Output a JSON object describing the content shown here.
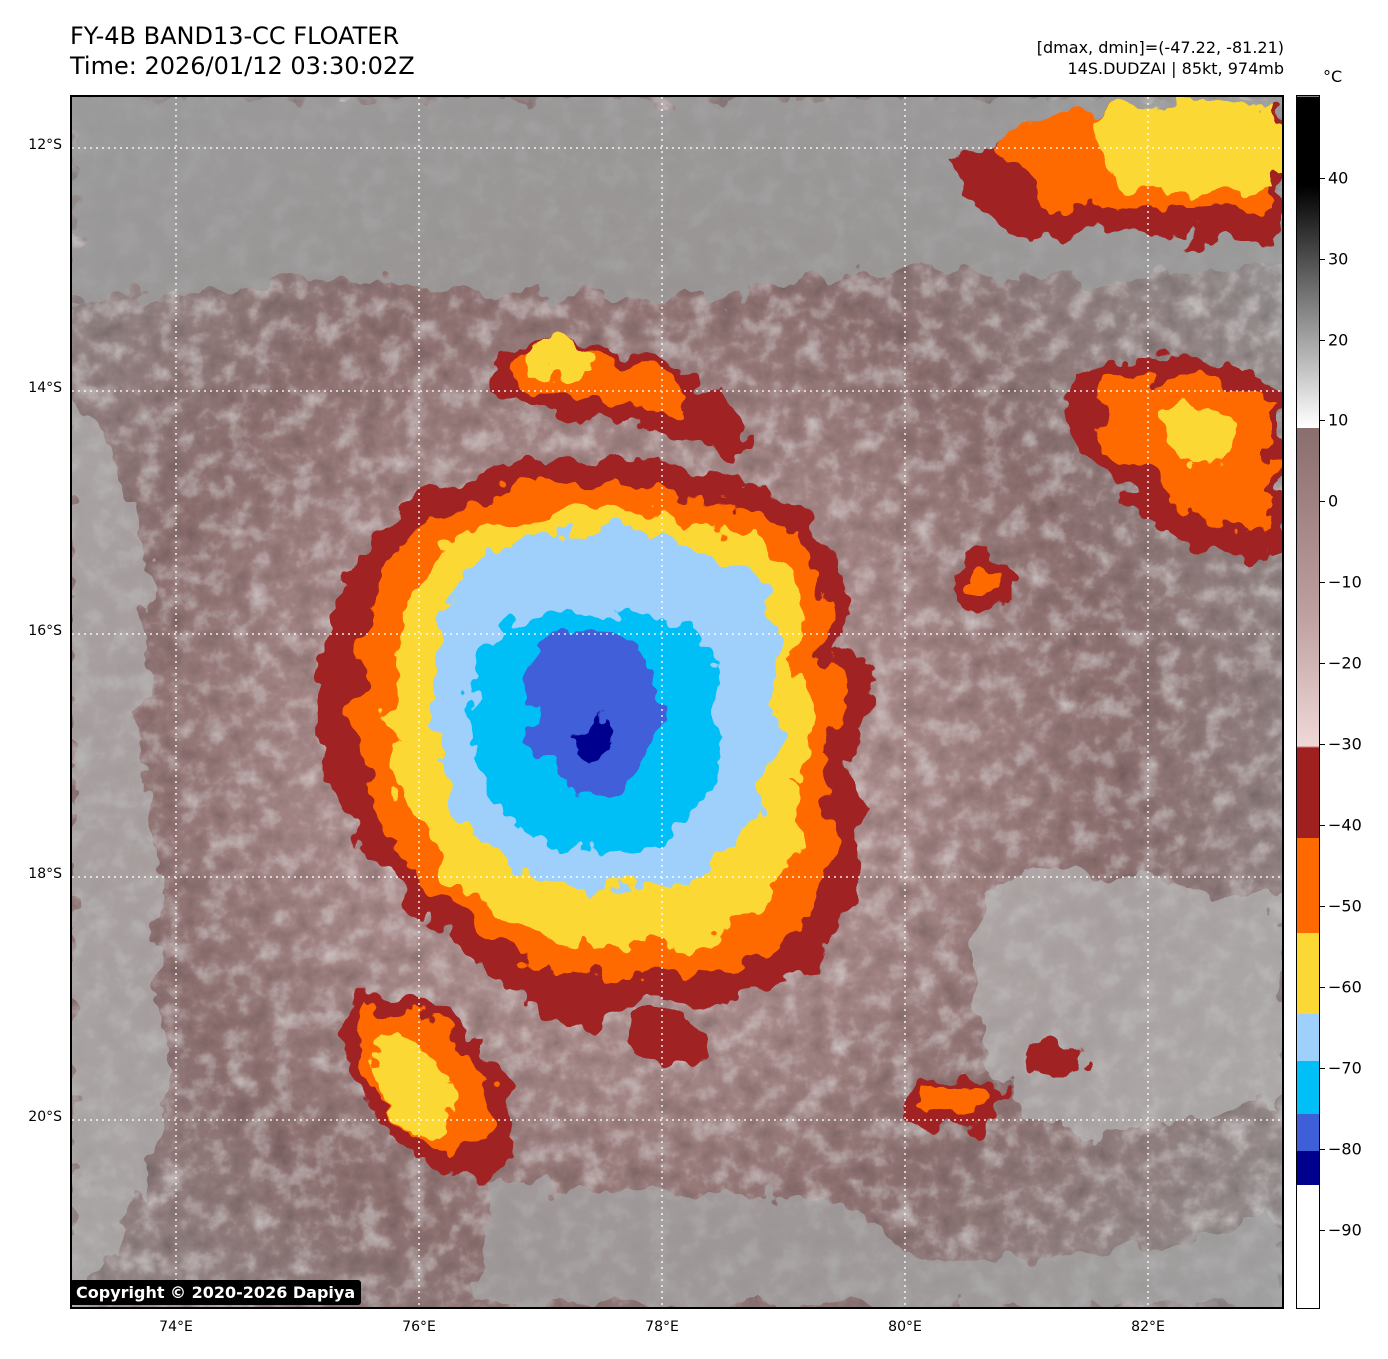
{
  "header": {
    "title": "FY-4B BAND13-CC FLOATER",
    "time": "Time: 2026/01/12 03:30:02Z",
    "range_text": "[dmax, dmin]=(-47.22, -81.21)",
    "storm_text": "14S.DUDZAI | 85kt, 974mb"
  },
  "map": {
    "lat_labels": [
      "12°S",
      "14°S",
      "16°S",
      "18°S",
      "20°S"
    ],
    "lon_labels": [
      "74°E",
      "76°E",
      "78°E",
      "80°E",
      "82°E"
    ],
    "lat_values": [
      -12,
      -14,
      -16,
      -18,
      -20
    ],
    "lon_values": [
      74,
      76,
      78,
      80,
      82
    ]
  },
  "colorbar": {
    "unit": "°C",
    "ticks": [
      "40",
      "30",
      "20",
      "10",
      "0",
      "−10",
      "−20",
      "−30",
      "−40",
      "−50",
      "−60",
      "−70",
      "−80",
      "−90"
    ],
    "colors": {
      "above_-30": "#8a6d6d",
      "-30_to-40": "#a02020",
      "-40_to-50": "#ff6a00",
      "-50_to-60": "#fcd835",
      "-60_to-70": "#9fd0fb",
      "-70_to-80": "#00bff6",
      "-80_to-85": "#3f5fd8",
      "below_-85": "#00008f"
    }
  },
  "copyright": "Copyright © 2020-2026 Dapiya"
}
